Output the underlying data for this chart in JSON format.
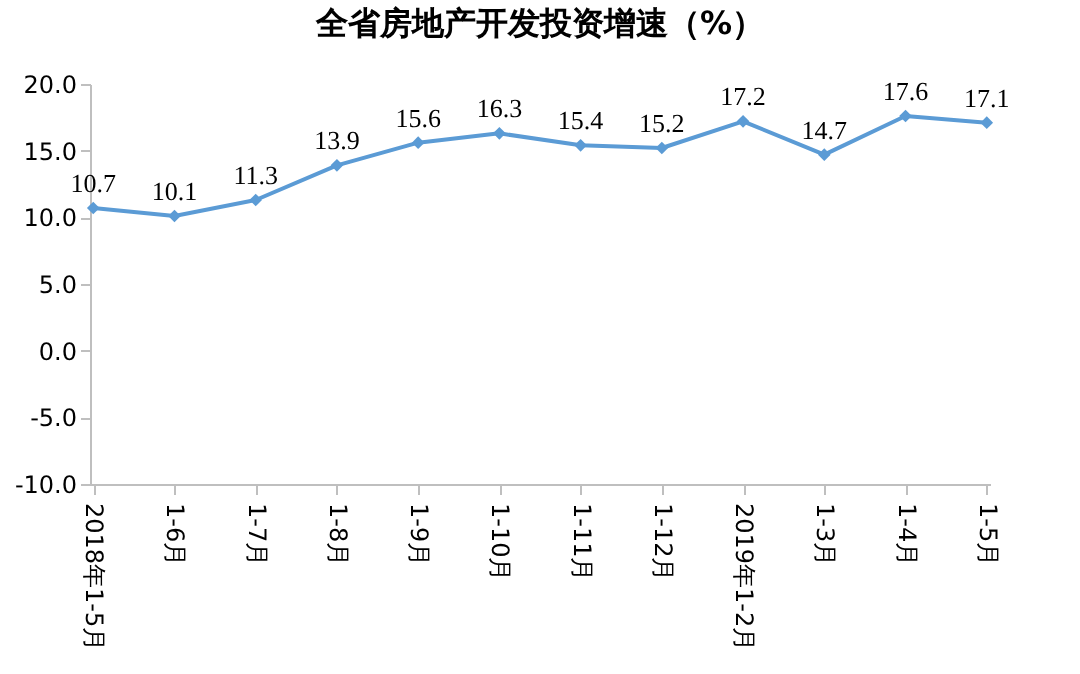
{
  "chart_data": {
    "type": "line",
    "title": "全省房地产开发投资增速（%）",
    "categories": [
      "2018年1-5月",
      "1-6月",
      "1-7月",
      "1-8月",
      "1-9月",
      "1-10月",
      "1-11月",
      "1-12月",
      "2019年1-2月",
      "1-3月",
      "1-4月",
      "1-5月"
    ],
    "series": [
      {
        "color": "#5b9bd5",
        "values": [
          10.7,
          10.1,
          11.3,
          13.9,
          15.6,
          16.3,
          15.4,
          15.2,
          17.2,
          14.7,
          17.6,
          17.1
        ]
      }
    ],
    "ylim": [
      -10,
      20
    ],
    "yticks": [
      {
        "value": -10,
        "label": "-10.0"
      },
      {
        "value": -5,
        "label": "-5.0"
      },
      {
        "value": 0,
        "label": "0.0"
      },
      {
        "value": 5,
        "label": "5.0"
      },
      {
        "value": 10,
        "label": "10.0"
      },
      {
        "value": 15,
        "label": "15.0"
      },
      {
        "value": 20,
        "label": "20.0"
      }
    ],
    "grid": false,
    "legend": false,
    "marker": "diamond",
    "line_style": "solid",
    "data_labels": true
  }
}
